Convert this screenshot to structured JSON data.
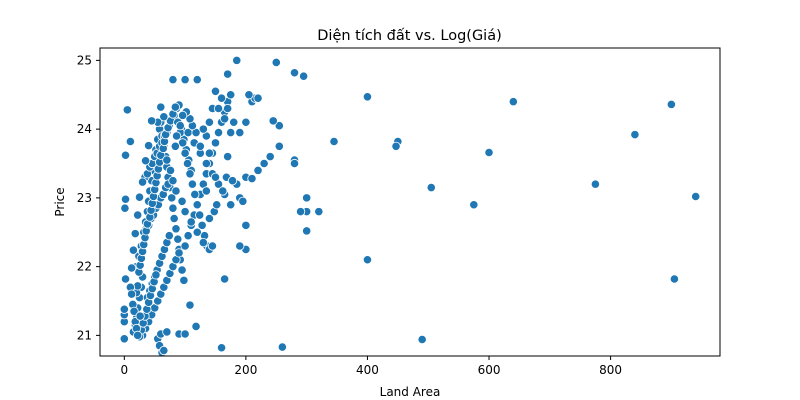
{
  "chart_data": {
    "type": "scatter",
    "title": "Diện tích đất vs. Log(Giá)",
    "xlabel": "Land Area",
    "ylabel": "Price",
    "xlim": [
      -40,
      980
    ],
    "ylim": [
      20.7,
      25.18
    ],
    "xticks": [
      0,
      200,
      400,
      600,
      800
    ],
    "yticks": [
      21,
      22,
      23,
      24,
      25
    ],
    "xtick_labels": [
      "0",
      "200",
      "400",
      "600",
      "800"
    ],
    "ytick_labels": [
      "21",
      "22",
      "23",
      "24",
      "25"
    ],
    "marker_color": "#1f77b4",
    "marker_edge": "#ffffff",
    "grid": false,
    "points": [
      [
        0,
        20.95
      ],
      [
        0,
        21.2
      ],
      [
        0,
        21.3
      ],
      [
        0,
        21.38
      ],
      [
        2,
        21.82
      ],
      [
        1,
        22.85
      ],
      [
        2,
        22.98
      ],
      [
        2,
        23.62
      ],
      [
        5,
        24.28
      ],
      [
        10,
        23.82
      ],
      [
        160,
        20.82
      ],
      [
        260,
        20.83
      ],
      [
        490,
        20.94
      ],
      [
        15,
        21.05
      ],
      [
        18,
        21.15
      ],
      [
        20,
        21.25
      ],
      [
        22,
        21.4
      ],
      [
        25,
        21.55
      ],
      [
        28,
        21.7
      ],
      [
        30,
        21.85
      ],
      [
        20,
        22.0
      ],
      [
        24,
        22.15
      ],
      [
        28,
        22.3
      ],
      [
        32,
        22.5
      ],
      [
        35,
        22.65
      ],
      [
        38,
        22.8
      ],
      [
        40,
        22.95
      ],
      [
        42,
        23.1
      ],
      [
        45,
        23.25
      ],
      [
        48,
        23.4
      ],
      [
        50,
        23.55
      ],
      [
        52,
        23.7
      ],
      [
        55,
        23.85
      ],
      [
        58,
        24.0
      ],
      [
        60,
        24.1
      ],
      [
        62,
        23.9
      ],
      [
        65,
        23.75
      ],
      [
        68,
        23.6
      ],
      [
        70,
        23.45
      ],
      [
        72,
        23.3
      ],
      [
        75,
        23.15
      ],
      [
        78,
        23.0
      ],
      [
        80,
        22.85
      ],
      [
        82,
        22.7
      ],
      [
        85,
        22.55
      ],
      [
        88,
        22.4
      ],
      [
        90,
        22.25
      ],
      [
        92,
        22.1
      ],
      [
        95,
        21.95
      ],
      [
        98,
        21.8
      ],
      [
        30,
        21.0
      ],
      [
        35,
        21.1
      ],
      [
        40,
        21.2
      ],
      [
        45,
        21.3
      ],
      [
        50,
        21.4
      ],
      [
        55,
        21.5
      ],
      [
        60,
        21.6
      ],
      [
        65,
        21.7
      ],
      [
        70,
        21.8
      ],
      [
        75,
        21.9
      ],
      [
        80,
        22.0
      ],
      [
        85,
        22.1
      ],
      [
        90,
        22.2
      ],
      [
        100,
        22.3
      ],
      [
        105,
        22.45
      ],
      [
        110,
        22.6
      ],
      [
        115,
        22.75
      ],
      [
        120,
        22.9
      ],
      [
        125,
        23.05
      ],
      [
        130,
        23.2
      ],
      [
        135,
        23.35
      ],
      [
        140,
        23.5
      ],
      [
        145,
        23.65
      ],
      [
        150,
        23.8
      ],
      [
        155,
        23.95
      ],
      [
        160,
        24.1
      ],
      [
        165,
        24.25
      ],
      [
        170,
        24.4
      ],
      [
        175,
        24.5
      ],
      [
        150,
        24.55
      ],
      [
        145,
        24.3
      ],
      [
        140,
        24.1
      ],
      [
        135,
        23.9
      ],
      [
        38,
        21.55
      ],
      [
        42,
        21.65
      ],
      [
        46,
        21.75
      ],
      [
        50,
        21.85
      ],
      [
        54,
        21.95
      ],
      [
        58,
        22.05
      ],
      [
        62,
        22.15
      ],
      [
        66,
        22.25
      ],
      [
        70,
        22.35
      ],
      [
        74,
        22.45
      ],
      [
        36,
        22.55
      ],
      [
        40,
        22.6
      ],
      [
        44,
        22.7
      ],
      [
        48,
        22.75
      ],
      [
        52,
        22.85
      ],
      [
        56,
        22.9
      ],
      [
        60,
        23.0
      ],
      [
        64,
        23.05
      ],
      [
        68,
        23.15
      ],
      [
        72,
        23.2
      ],
      [
        34,
        23.3
      ],
      [
        38,
        23.35
      ],
      [
        42,
        23.45
      ],
      [
        46,
        23.5
      ],
      [
        50,
        23.6
      ],
      [
        54,
        23.65
      ],
      [
        58,
        23.75
      ],
      [
        62,
        23.8
      ],
      [
        66,
        23.9
      ],
      [
        70,
        23.95
      ],
      [
        74,
        24.05
      ],
      [
        78,
        24.15
      ],
      [
        82,
        24.2
      ],
      [
        86,
        24.3
      ],
      [
        90,
        24.35
      ],
      [
        94,
        24.0
      ],
      [
        98,
        23.85
      ],
      [
        102,
        23.7
      ],
      [
        106,
        23.55
      ],
      [
        110,
        23.4
      ],
      [
        25,
        20.98
      ],
      [
        28,
        21.08
      ],
      [
        31,
        21.18
      ],
      [
        34,
        21.28
      ],
      [
        37,
        21.38
      ],
      [
        40,
        21.48
      ],
      [
        43,
        21.58
      ],
      [
        46,
        21.68
      ],
      [
        49,
        21.78
      ],
      [
        52,
        21.88
      ],
      [
        55,
        20.95
      ],
      [
        58,
        20.85
      ],
      [
        62,
        20.75
      ],
      [
        65,
        20.78
      ],
      [
        60,
        21.02
      ],
      [
        70,
        21.05
      ],
      [
        90,
        21.02
      ],
      [
        100,
        21.02
      ],
      [
        118,
        21.13
      ],
      [
        108,
        21.44
      ],
      [
        20,
        21.62
      ],
      [
        22,
        21.72
      ],
      [
        24,
        21.92
      ],
      [
        26,
        22.02
      ],
      [
        28,
        22.12
      ],
      [
        30,
        22.22
      ],
      [
        32,
        22.32
      ],
      [
        34,
        22.42
      ],
      [
        36,
        22.52
      ],
      [
        38,
        22.62
      ],
      [
        42,
        22.72
      ],
      [
        44,
        22.82
      ],
      [
        46,
        22.92
      ],
      [
        48,
        23.02
      ],
      [
        50,
        23.12
      ],
      [
        52,
        23.22
      ],
      [
        54,
        23.32
      ],
      [
        56,
        23.42
      ],
      [
        58,
        23.52
      ],
      [
        60,
        23.62
      ],
      [
        64,
        23.72
      ],
      [
        66,
        23.82
      ],
      [
        68,
        23.92
      ],
      [
        72,
        24.02
      ],
      [
        76,
        24.12
      ],
      [
        80,
        24.22
      ],
      [
        84,
        24.32
      ],
      [
        88,
        24.1
      ],
      [
        92,
        23.95
      ],
      [
        96,
        23.8
      ],
      [
        100,
        23.65
      ],
      [
        104,
        23.5
      ],
      [
        108,
        23.35
      ],
      [
        112,
        23.2
      ],
      [
        116,
        23.05
      ],
      [
        120,
        22.9
      ],
      [
        124,
        22.75
      ],
      [
        128,
        22.6
      ],
      [
        132,
        22.45
      ],
      [
        136,
        22.3
      ],
      [
        140,
        22.25
      ],
      [
        130,
        22.35
      ],
      [
        120,
        22.5
      ],
      [
        110,
        22.65
      ],
      [
        100,
        22.8
      ],
      [
        95,
        22.95
      ],
      [
        85,
        23.1
      ],
      [
        80,
        23.25
      ],
      [
        76,
        23.4
      ],
      [
        70,
        23.55
      ],
      [
        105,
        23.95
      ],
      [
        115,
        23.8
      ],
      [
        125,
        23.65
      ],
      [
        135,
        23.5
      ],
      [
        145,
        23.35
      ],
      [
        155,
        23.2
      ],
      [
        165,
        23.05
      ],
      [
        175,
        22.9
      ],
      [
        185,
        23.2
      ],
      [
        170,
        23.6
      ],
      [
        175,
        23.95
      ],
      [
        165,
        24.15
      ],
      [
        155,
        24.3
      ],
      [
        160,
        24.45
      ],
      [
        170,
        24.3
      ],
      [
        180,
        24.1
      ],
      [
        190,
        23.95
      ],
      [
        200,
        24.1
      ],
      [
        210,
        24.4
      ],
      [
        215,
        24.45
      ],
      [
        170,
        24.8
      ],
      [
        185,
        25.0
      ],
      [
        220,
        24.45
      ],
      [
        250,
        24.97
      ],
      [
        280,
        24.82
      ],
      [
        295,
        24.77
      ],
      [
        205,
        24.5
      ],
      [
        120,
        24.72
      ],
      [
        80,
        24.72
      ],
      [
        100,
        24.72
      ],
      [
        190,
        23.0
      ],
      [
        195,
        22.95
      ],
      [
        200,
        23.3
      ],
      [
        210,
        23.28
      ],
      [
        220,
        23.4
      ],
      [
        230,
        23.5
      ],
      [
        240,
        23.6
      ],
      [
        255,
        23.75
      ],
      [
        255,
        24.05
      ],
      [
        245,
        24.12
      ],
      [
        200,
        22.6
      ],
      [
        200,
        22.25
      ],
      [
        190,
        22.3
      ],
      [
        165,
        21.82
      ],
      [
        280,
        23.55
      ],
      [
        280,
        23.5
      ],
      [
        300,
        23.0
      ],
      [
        300,
        22.8
      ],
      [
        290,
        22.8
      ],
      [
        320,
        22.8
      ],
      [
        300,
        22.52
      ],
      [
        345,
        23.82
      ],
      [
        400,
        24.47
      ],
      [
        400,
        22.1
      ],
      [
        450,
        23.82
      ],
      [
        447,
        23.75
      ],
      [
        505,
        23.15
      ],
      [
        575,
        22.9
      ],
      [
        600,
        23.66
      ],
      [
        640,
        24.4
      ],
      [
        775,
        23.2
      ],
      [
        840,
        23.92
      ],
      [
        900,
        24.36
      ],
      [
        940,
        23.02
      ],
      [
        905,
        21.82
      ],
      [
        60,
        24.32
      ],
      [
        65,
        24.18
      ],
      [
        55,
        24.1
      ],
      [
        45,
        24.12
      ],
      [
        40,
        23.76
      ],
      [
        35,
        23.54
      ],
      [
        30,
        23.23
      ],
      [
        25,
        23.01
      ],
      [
        22,
        22.75
      ],
      [
        18,
        22.48
      ],
      [
        15,
        22.24
      ],
      [
        12,
        21.98
      ],
      [
        10,
        21.7
      ],
      [
        12,
        21.6
      ],
      [
        14,
        21.45
      ],
      [
        16,
        21.35
      ],
      [
        18,
        21.2
      ],
      [
        20,
        21.1
      ],
      [
        22,
        21.0
      ],
      [
        26,
        21.28
      ],
      [
        130,
        24.0
      ],
      [
        125,
        23.75
      ],
      [
        118,
        23.95
      ],
      [
        112,
        24.05
      ],
      [
        108,
        24.15
      ],
      [
        102,
        24.25
      ],
      [
        96,
        24.2
      ],
      [
        92,
        24.05
      ],
      [
        86,
        23.9
      ],
      [
        84,
        23.75
      ],
      [
        145,
        22.3
      ],
      [
        148,
        22.8
      ],
      [
        152,
        22.9
      ],
      [
        140,
        22.7
      ],
      [
        150,
        23.3
      ],
      [
        162,
        23.1
      ],
      [
        168,
        23.3
      ],
      [
        178,
        23.25
      ],
      [
        140,
        23.65
      ],
      [
        135,
        23.1
      ]
    ]
  }
}
